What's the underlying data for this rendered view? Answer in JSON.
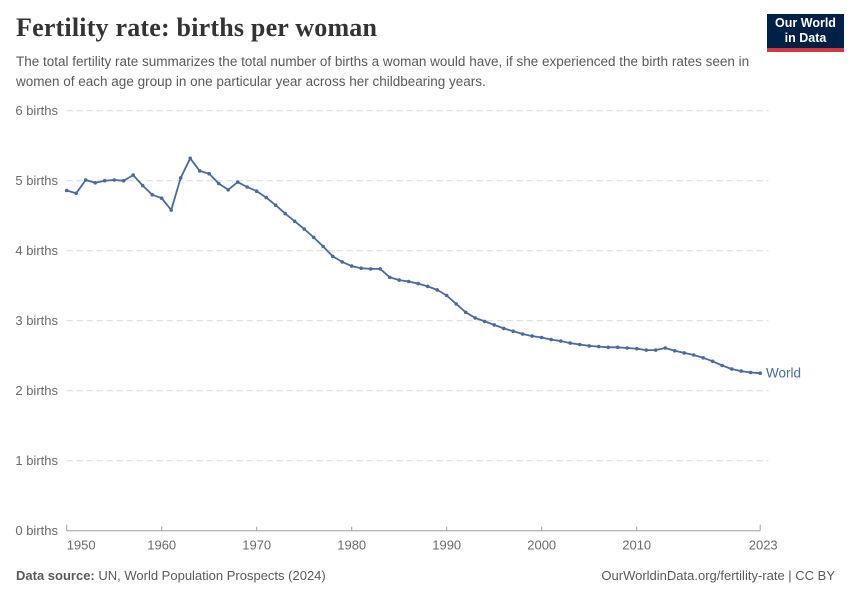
{
  "header": {
    "title": "Fertility rate: births per woman",
    "subtitle": "The total fertility rate summarizes the total number of births a woman would have, if she experienced the birth rates seen in women of each age group in one particular year across her childbearing years.",
    "logo": {
      "line1": "Our World",
      "line2": "in Data",
      "bg_color": "#002147",
      "accent_color": "#D0393E"
    }
  },
  "chart_data": {
    "type": "line",
    "title": "Fertility rate: births per woman",
    "xlabel": "",
    "ylabel": "",
    "ylim": [
      0,
      6
    ],
    "xlim": [
      1950,
      2023
    ],
    "grid": "horizontal-dashed",
    "legend_position": "end-of-line-label",
    "ytick_values": [
      0,
      1,
      2,
      3,
      4,
      5,
      6
    ],
    "ytick_labels": [
      "0 births",
      "1 births",
      "2 births",
      "3 births",
      "4 births",
      "5 births",
      "6 births"
    ],
    "xticks": [
      1950,
      1960,
      1970,
      1980,
      1990,
      2000,
      2010,
      2023
    ],
    "xtick_labels": [
      "1950",
      "1960",
      "1970",
      "1980",
      "1990",
      "2000",
      "2010",
      "2023"
    ],
    "x": [
      1950,
      1951,
      1952,
      1953,
      1954,
      1955,
      1956,
      1957,
      1958,
      1959,
      1960,
      1961,
      1962,
      1963,
      1964,
      1965,
      1966,
      1967,
      1968,
      1969,
      1970,
      1971,
      1972,
      1973,
      1974,
      1975,
      1976,
      1977,
      1978,
      1979,
      1980,
      1981,
      1982,
      1983,
      1984,
      1985,
      1986,
      1987,
      1988,
      1989,
      1990,
      1991,
      1992,
      1993,
      1994,
      1995,
      1996,
      1997,
      1998,
      1999,
      2000,
      2001,
      2002,
      2003,
      2004,
      2005,
      2006,
      2007,
      2008,
      2009,
      2010,
      2011,
      2012,
      2013,
      2014,
      2015,
      2016,
      2017,
      2018,
      2019,
      2020,
      2021,
      2022,
      2023
    ],
    "series": [
      {
        "name": "World",
        "color": "#4C6A9C",
        "values": [
          4.86,
          4.82,
          5.01,
          4.97,
          5.0,
          5.01,
          5.0,
          5.08,
          4.93,
          4.8,
          4.75,
          4.58,
          5.04,
          5.32,
          5.14,
          5.1,
          4.96,
          4.87,
          4.98,
          4.91,
          4.85,
          4.76,
          4.65,
          4.53,
          4.42,
          4.31,
          4.19,
          4.06,
          3.92,
          3.84,
          3.78,
          3.75,
          3.74,
          3.74,
          3.62,
          3.58,
          3.56,
          3.53,
          3.49,
          3.44,
          3.36,
          3.24,
          3.12,
          3.04,
          2.99,
          2.94,
          2.89,
          2.85,
          2.81,
          2.78,
          2.76,
          2.73,
          2.71,
          2.68,
          2.66,
          2.64,
          2.63,
          2.62,
          2.62,
          2.61,
          2.6,
          2.58,
          2.58,
          2.61,
          2.57,
          2.54,
          2.51,
          2.47,
          2.42,
          2.36,
          2.31,
          2.28,
          2.26,
          2.25
        ]
      }
    ],
    "end_label": "World"
  },
  "footer": {
    "source_label": "Data source:",
    "source_text": " UN, World Population Prospects (2024)",
    "credit": "OurWorldinData.org/fertility-rate | CC BY"
  }
}
